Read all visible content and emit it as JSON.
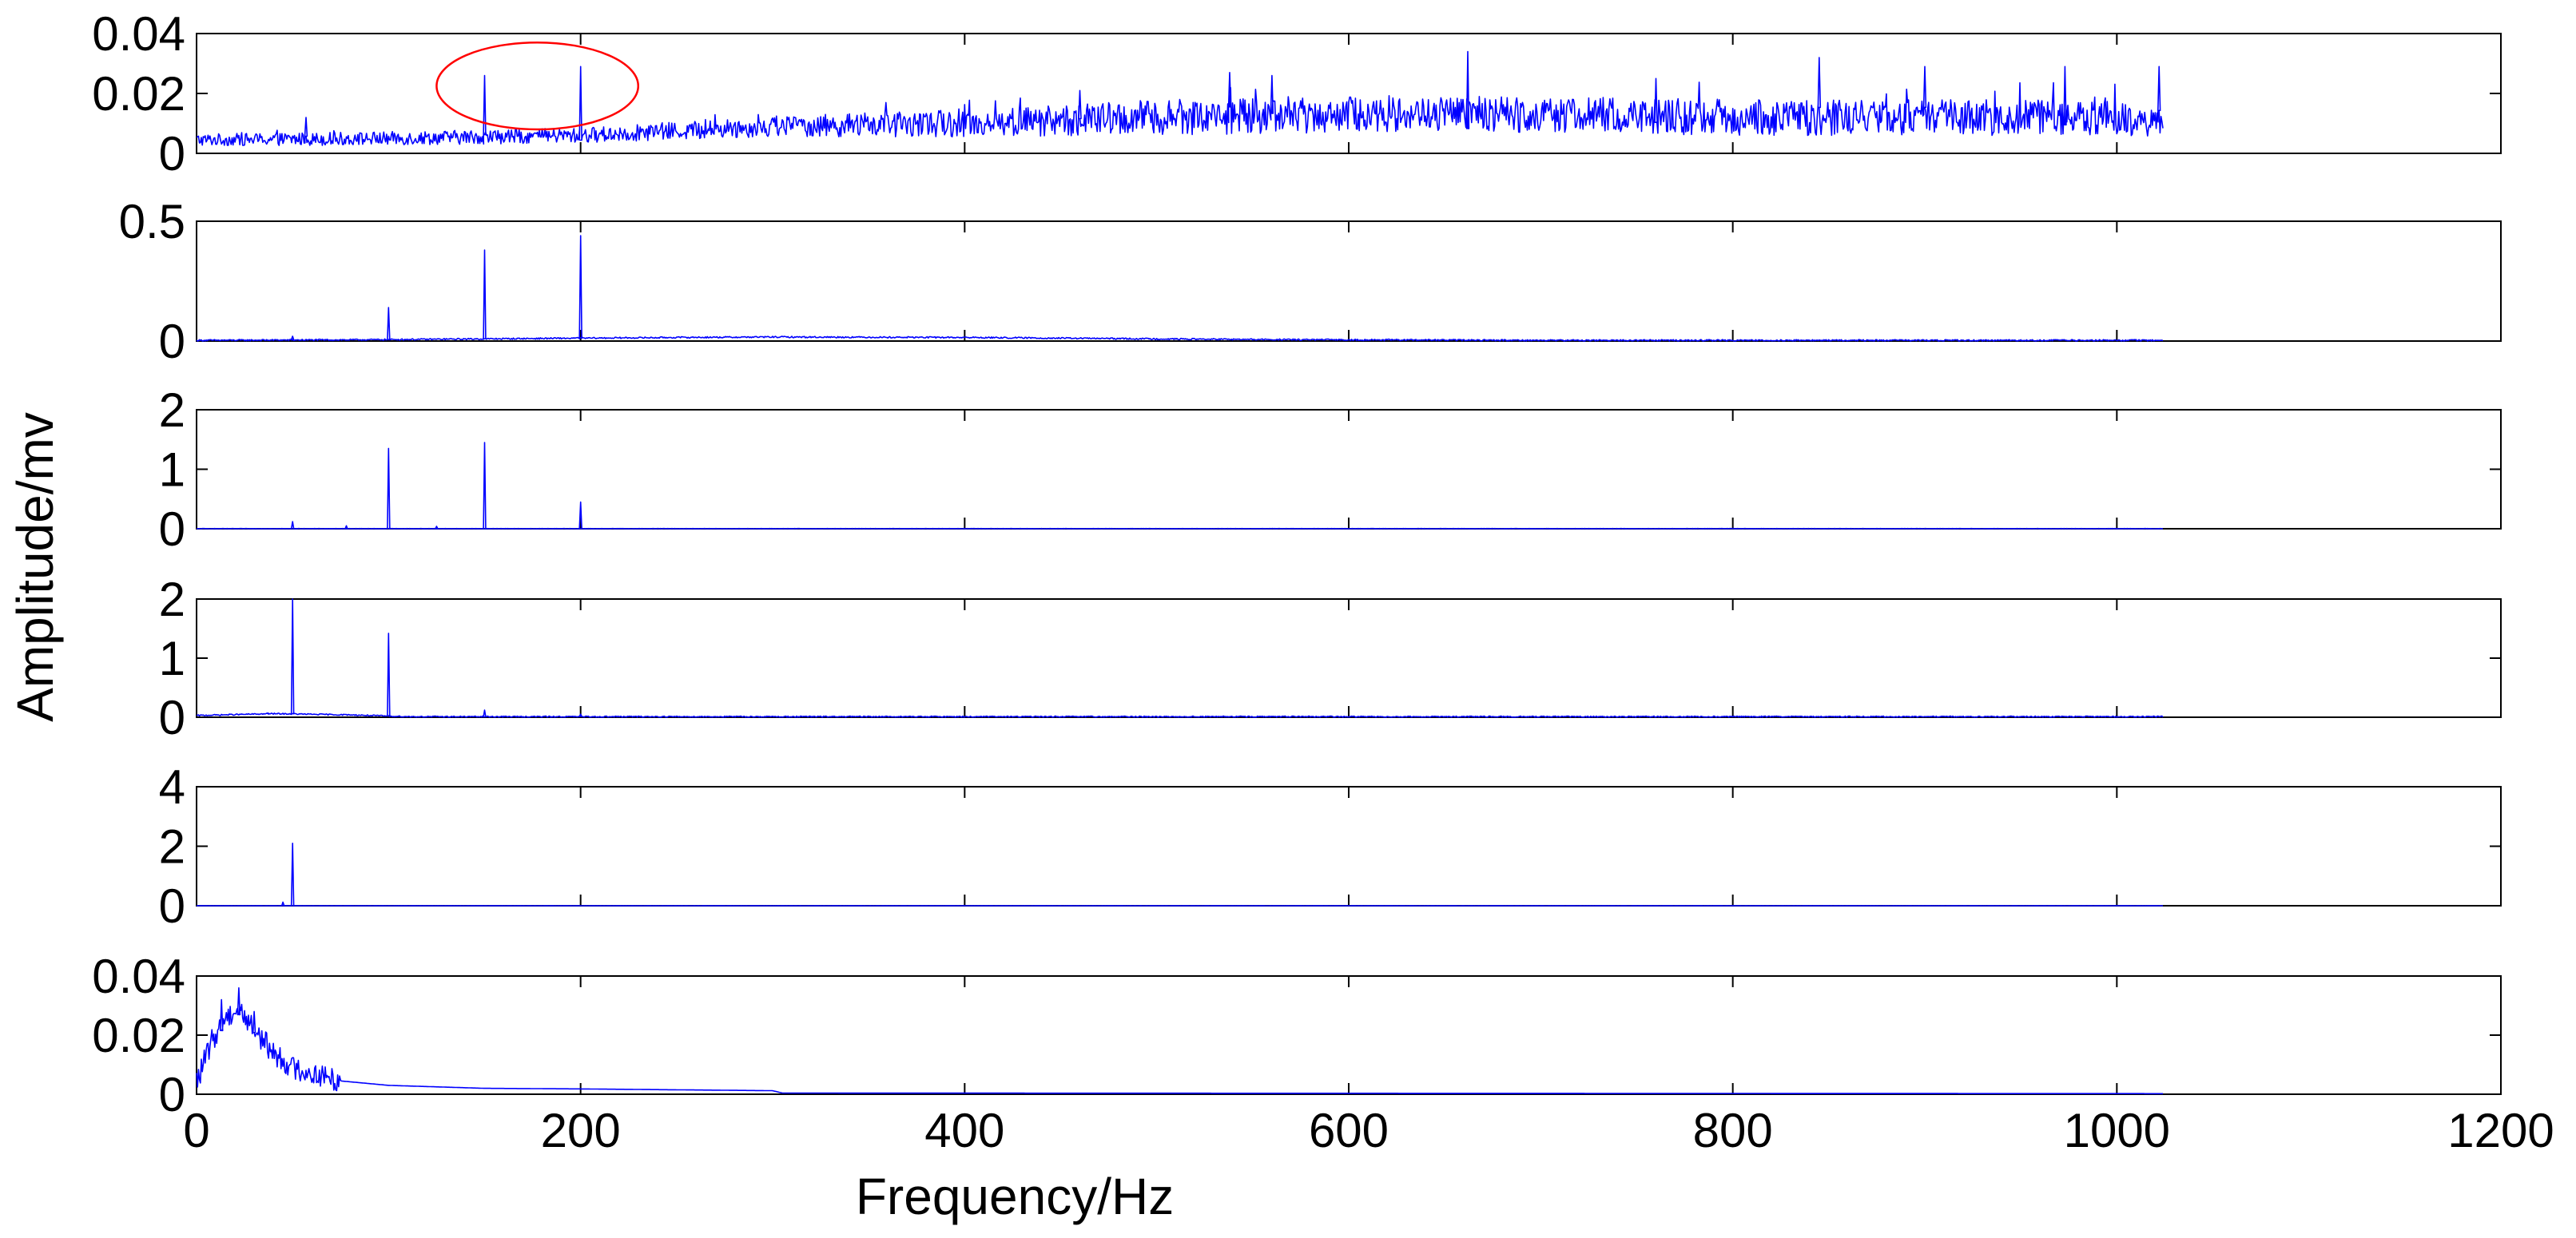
{
  "figure": {
    "xlabel": "Frequency/Hz",
    "ylabel": "Amplitude/mv",
    "x_ticks": [
      0,
      200,
      400,
      600,
      800,
      1000,
      1200
    ],
    "x_tick_labels": [
      "0",
      "200",
      "400",
      "600",
      "800",
      "1000",
      "1200"
    ]
  },
  "colors": {
    "series": "#0000ff",
    "annotation": "#ff0000",
    "axes": "#000000",
    "background": "#ffffff"
  },
  "chart_data": [
    {
      "type": "line",
      "xlim": [
        0,
        1200
      ],
      "ylim": [
        0,
        0.04
      ],
      "y_ticks": [
        0,
        0.02,
        0.04
      ],
      "y_tick_labels": [
        "0",
        "0.02",
        "0.04"
      ],
      "grid": false,
      "legend": "none",
      "annotation": {
        "shape": "ellipse",
        "x_range": [
          125,
          230
        ],
        "y_range": [
          0.008,
          0.037
        ]
      },
      "series": [
        {
          "kind": "noise",
          "x_end": 1024,
          "floor": [
            [
              0,
              0.0045
            ],
            [
              100,
              0.005
            ],
            [
              200,
              0.006
            ],
            [
              300,
              0.009
            ],
            [
              400,
              0.01
            ],
            [
              500,
              0.012
            ],
            [
              600,
              0.013
            ],
            [
              700,
              0.013
            ],
            [
              800,
              0.012
            ],
            [
              900,
              0.012
            ],
            [
              1000,
              0.012
            ],
            [
              1024,
              0.011
            ]
          ],
          "amplitude": [
            [
              0,
              0.002
            ],
            [
              200,
              0.0025
            ],
            [
              300,
              0.0035
            ],
            [
              400,
              0.0045
            ],
            [
              500,
              0.006
            ],
            [
              1024,
              0.006
            ]
          ],
          "peaks": [
            [
              57,
              0.012
            ],
            [
              150,
              0.026
            ],
            [
              200,
              0.029
            ],
            [
              460,
              0.021
            ],
            [
              538,
              0.027
            ],
            [
              560,
              0.026
            ],
            [
              662,
              0.034
            ],
            [
              760,
              0.025
            ],
            [
              845,
              0.032
            ],
            [
              900,
              0.029
            ],
            [
              973,
              0.029
            ],
            [
              1022,
              0.029
            ]
          ]
        }
      ]
    },
    {
      "type": "line",
      "xlim": [
        0,
        1200
      ],
      "ylim": [
        0,
        0.5
      ],
      "y_ticks": [
        0,
        0.5
      ],
      "y_tick_labels": [
        "0",
        "0.5"
      ],
      "grid": false,
      "legend": "none",
      "series": [
        {
          "kind": "spectrum",
          "x_end": 1024,
          "floor": [
            [
              0,
              0.0
            ],
            [
              80,
              0.002
            ],
            [
              150,
              0.006
            ],
            [
              250,
              0.012
            ],
            [
              300,
              0.014
            ],
            [
              400,
              0.012
            ],
            [
              500,
              0.006
            ],
            [
              560,
              0.003
            ],
            [
              700,
              0.0
            ],
            [
              1024,
              0.0
            ]
          ],
          "noise": 0.006,
          "peaks": [
            [
              50,
              0.02
            ],
            [
              100,
              0.14
            ],
            [
              150,
              0.38
            ],
            [
              200,
              0.44
            ]
          ]
        }
      ]
    },
    {
      "type": "line",
      "xlim": [
        0,
        1200
      ],
      "ylim": [
        0,
        2
      ],
      "y_ticks": [
        0,
        1,
        2
      ],
      "y_tick_labels": [
        "0",
        "1",
        "2"
      ],
      "grid": false,
      "legend": "none",
      "series": [
        {
          "kind": "spectrum",
          "x_end": 1024,
          "floor": [
            [
              0,
              0.0
            ],
            [
              1024,
              0.0
            ]
          ],
          "noise": 0.004,
          "peaks": [
            [
              50,
              0.12
            ],
            [
              78,
              0.05
            ],
            [
              100,
              1.35
            ],
            [
              125,
              0.04
            ],
            [
              150,
              1.45
            ],
            [
              200,
              0.45
            ]
          ]
        }
      ]
    },
    {
      "type": "line",
      "xlim": [
        0,
        1200
      ],
      "ylim": [
        0,
        2
      ],
      "y_ticks": [
        0,
        1,
        2
      ],
      "y_tick_labels": [
        "0",
        "1",
        "2"
      ],
      "grid": false,
      "legend": "none",
      "series": [
        {
          "kind": "spectrum",
          "x_end": 1024,
          "floor": [
            [
              0,
              0.02
            ],
            [
              40,
              0.05
            ],
            [
              80,
              0.03
            ],
            [
              110,
              0.0
            ],
            [
              1024,
              0.0
            ]
          ],
          "noise": 0.02,
          "peaks": [
            [
              37,
              0.07
            ],
            [
              50,
              2.0
            ],
            [
              100,
              1.42
            ],
            [
              150,
              0.12
            ],
            [
              200,
              0.05
            ]
          ]
        }
      ]
    },
    {
      "type": "line",
      "xlim": [
        0,
        1200
      ],
      "ylim": [
        0,
        4
      ],
      "y_ticks": [
        0,
        2,
        4
      ],
      "y_tick_labels": [
        "0",
        "2",
        "4"
      ],
      "grid": false,
      "legend": "none",
      "series": [
        {
          "kind": "spectrum",
          "x_end": 1024,
          "floor": [
            [
              0,
              0.0
            ],
            [
              1024,
              0.0
            ]
          ],
          "noise": 0.004,
          "peaks": [
            [
              45,
              0.12
            ],
            [
              50,
              2.1
            ]
          ]
        }
      ]
    },
    {
      "type": "line",
      "xlim": [
        0,
        1200
      ],
      "ylim": [
        0,
        0.04
      ],
      "y_ticks": [
        0,
        0.02,
        0.04
      ],
      "y_tick_labels": [
        "0",
        "0.02",
        "0.04"
      ],
      "grid": false,
      "legend": "none",
      "series": [
        {
          "kind": "lowpass",
          "x_end": 1024,
          "floor": [
            [
              0,
              0.004
            ],
            [
              8,
              0.018
            ],
            [
              15,
              0.026
            ],
            [
              22,
              0.029
            ],
            [
              30,
              0.022
            ],
            [
              40,
              0.014
            ],
            [
              50,
              0.009
            ],
            [
              60,
              0.007
            ],
            [
              75,
              0.0045
            ],
            [
              100,
              0.003
            ],
            [
              150,
              0.002
            ],
            [
              200,
              0.0018
            ],
            [
              300,
              0.0012
            ],
            [
              305,
              0.0004
            ],
            [
              1024,
              0.0002
            ]
          ],
          "noise": 0.004,
          "noise_until": 75,
          "peaks": [
            [
              13,
              0.032
            ],
            [
              22,
              0.036
            ],
            [
              30,
              0.028
            ]
          ]
        }
      ]
    }
  ]
}
